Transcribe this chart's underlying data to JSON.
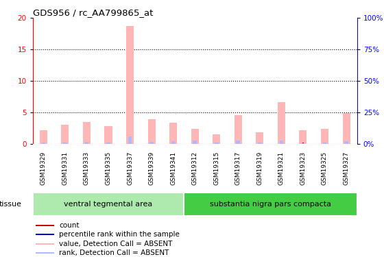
{
  "title": "GDS956 / rc_AA799865_at",
  "samples": [
    "GSM19329",
    "GSM19331",
    "GSM19333",
    "GSM19335",
    "GSM19337",
    "GSM19339",
    "GSM19341",
    "GSM19312",
    "GSM19315",
    "GSM19317",
    "GSM19319",
    "GSM19321",
    "GSM19323",
    "GSM19325",
    "GSM19327"
  ],
  "value_absent": [
    2.2,
    3.1,
    3.5,
    2.8,
    18.7,
    3.9,
    3.4,
    2.4,
    1.5,
    4.6,
    1.8,
    6.6,
    2.2,
    2.4,
    4.9
  ],
  "rank_absent": [
    1.1,
    0.9,
    1.7,
    1.0,
    6.1,
    1.5,
    2.3,
    2.5,
    0.9,
    2.9,
    1.2,
    2.7,
    0.8,
    0.9,
    2.1
  ],
  "count_vals": [
    0.25,
    0.25,
    0.25,
    0.25,
    0.25,
    0.25,
    0.25,
    0.25,
    0.25,
    0.25,
    0.25,
    0.25,
    0.25,
    0.25,
    0.25
  ],
  "pct_rank_vals": [
    0.25,
    0.25,
    0.25,
    0.25,
    0.25,
    0.25,
    0.25,
    0.25,
    0.25,
    0.25,
    0.25,
    0.25,
    0.25,
    0.25,
    0.25
  ],
  "ylim_left": [
    0,
    20
  ],
  "ylim_right": [
    0,
    100
  ],
  "yticks_left": [
    0,
    5,
    10,
    15,
    20
  ],
  "yticks_right": [
    0,
    25,
    50,
    75,
    100
  ],
  "ytick_labels_right": [
    "0%",
    "25%",
    "50%",
    "75%",
    "100%"
  ],
  "color_value_absent": "#ffb6b6",
  "color_rank_absent": "#b0b8ff",
  "color_count": "#cc0000",
  "color_percentile": "#0000cc",
  "group1_label": "ventral tegmental area",
  "group2_label": "substantia nigra pars compacta",
  "n_group1": 7,
  "n_group2": 8,
  "tissue_label": "tissue",
  "bg_color_xtick": "#cccccc",
  "bg_color_group1": "#aeeaae",
  "bg_color_group2": "#44cc44",
  "legend_items": [
    {
      "label": "count",
      "color": "#cc0000"
    },
    {
      "label": "percentile rank within the sample",
      "color": "#0000cc"
    },
    {
      "label": "value, Detection Call = ABSENT",
      "color": "#ffb6b6"
    },
    {
      "label": "rank, Detection Call = ABSENT",
      "color": "#b0b8ff"
    }
  ]
}
